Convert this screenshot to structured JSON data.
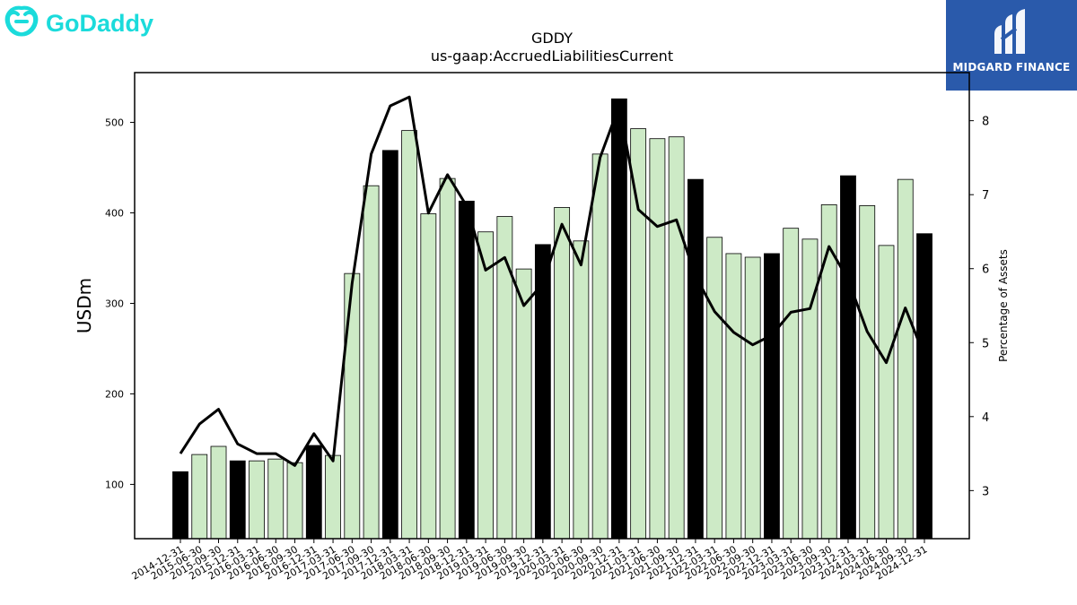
{
  "branding": {
    "left_logo_text": "GoDaddy",
    "right_logo_text": "MIDGARD FINANCE",
    "left_logo_color": "#1bdbdb",
    "right_logo_bg": "#2a5aab"
  },
  "chart_data": {
    "type": "bar",
    "title": "GDDY",
    "subtitle": "us-gaap:AccruedLiabilitiesCurrent",
    "ylabel": "USDm",
    "y2label": "Percentage of Assets",
    "ylim": [
      40,
      555
    ],
    "y2lim": [
      2.35,
      8.65
    ],
    "yticks": [
      100,
      200,
      300,
      400,
      500
    ],
    "y2ticks": [
      3,
      4,
      5,
      6,
      7,
      8
    ],
    "categories": [
      "2014-12-31",
      "2015-06-30",
      "2015-09-30",
      "2015-12-31",
      "2016-03-31",
      "2016-06-30",
      "2016-09-30",
      "2016-12-31",
      "2017-03-31",
      "2017-06-30",
      "2017-09-30",
      "2017-12-31",
      "2018-03-31",
      "2018-06-30",
      "2018-09-30",
      "2018-12-31",
      "2019-03-31",
      "2019-06-30",
      "2019-09-30",
      "2019-12-31",
      "2020-03-31",
      "2020-06-30",
      "2020-09-30",
      "2020-12-31",
      "2021-03-31",
      "2021-06-30",
      "2021-09-30",
      "2021-12-31",
      "2022-03-31",
      "2022-06-30",
      "2022-09-30",
      "2022-12-31",
      "2023-03-31",
      "2023-06-30",
      "2023-09-30",
      "2023-12-31",
      "2024-03-31",
      "2024-06-30",
      "2024-09-30",
      "2024-12-31"
    ],
    "series": [
      {
        "kind": "bar",
        "values": [
          114,
          133,
          142,
          126,
          126,
          128,
          124,
          143,
          132,
          333,
          430,
          469,
          491,
          399,
          438,
          413,
          379,
          396,
          338,
          365,
          406,
          369,
          465,
          526,
          493,
          482,
          484,
          437,
          373,
          355,
          351,
          355,
          383,
          371,
          409,
          441,
          408,
          364,
          437,
          377
        ],
        "highlight": [
          true,
          false,
          false,
          true,
          false,
          false,
          false,
          true,
          false,
          false,
          false,
          true,
          false,
          false,
          false,
          true,
          false,
          false,
          false,
          true,
          false,
          false,
          false,
          true,
          false,
          false,
          false,
          true,
          false,
          false,
          false,
          true,
          false,
          false,
          false,
          true,
          false,
          false,
          false,
          true
        ]
      },
      {
        "kind": "line",
        "axis": "right",
        "values": [
          3.5,
          3.9,
          4.1,
          3.63,
          3.5,
          3.5,
          3.34,
          3.77,
          3.4,
          5.8,
          7.55,
          8.2,
          8.32,
          6.75,
          7.27,
          6.85,
          5.98,
          6.15,
          5.5,
          5.8,
          6.6,
          6.05,
          7.5,
          8.2,
          6.8,
          6.57,
          6.66,
          5.9,
          5.42,
          5.14,
          4.97,
          5.1,
          5.41,
          5.46,
          6.3,
          5.85,
          5.15,
          4.73,
          5.47,
          4.82
        ]
      }
    ],
    "colors": {
      "bar_normal": "#cdeac6",
      "bar_highlight": "#000000",
      "line": "#000000",
      "edge": "#000000"
    },
    "grid": false,
    "legend": "none"
  }
}
